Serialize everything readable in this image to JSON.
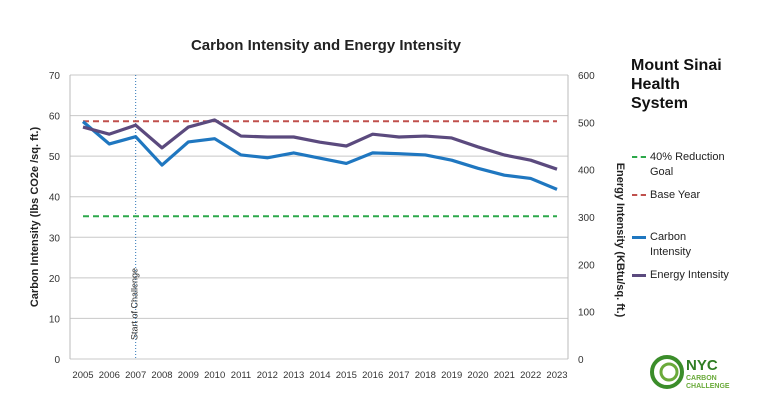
{
  "chart_data": {
    "type": "line",
    "title": "Carbon Intensity and Energy Intensity",
    "ylabel": "Carbon Intensity (lbs CO2e /sq. ft.)",
    "y2label": "Energy Intensity (KBtu/sq. ft.)",
    "ylim": [
      0,
      70
    ],
    "y2lim": [
      0,
      600
    ],
    "yticks": [
      "0",
      "10",
      "20",
      "30",
      "40",
      "50",
      "60",
      "70"
    ],
    "y2ticks": [
      "0",
      "100",
      "200",
      "300",
      "400",
      "500",
      "600"
    ],
    "x": [
      "2005",
      "2006",
      "2007",
      "2008",
      "2009",
      "2010",
      "2011",
      "2012",
      "2013",
      "2014",
      "2015",
      "2016",
      "2017",
      "2018",
      "2019",
      "2020",
      "2021",
      "2022",
      "2023"
    ],
    "series": [
      {
        "name": "Carbon Intensity",
        "axis": "left",
        "color": "#1f77c0",
        "values": [
          58.5,
          53,
          54.8,
          47.8,
          53.5,
          54.3,
          50.3,
          49.6,
          50.8,
          49.5,
          48.2,
          50.8,
          50.6,
          50.3,
          49,
          47,
          45.3,
          44.5,
          41.8
        ]
      },
      {
        "name": "Energy Intensity",
        "axis": "right",
        "color": "#5b4a7e",
        "values": [
          490,
          475,
          494,
          446,
          490,
          505,
          471,
          469,
          469,
          458,
          450,
          475,
          469,
          471,
          467,
          448,
          431,
          420,
          401
        ]
      }
    ],
    "reference_lines": [
      {
        "name": "40% Reduction Goal",
        "axis": "left",
        "value": 35.2,
        "color": "#2ca84a",
        "style": "dashed"
      },
      {
        "name": "Base Year",
        "axis": "left",
        "value": 58.6,
        "color": "#c0504d",
        "style": "dashed"
      }
    ],
    "annotation": {
      "text": "Start of Challenge",
      "x": "2007",
      "color": "#2e75b6"
    },
    "grid": true,
    "legend_position": "right"
  },
  "side_title": "Mount Sinai Health System",
  "logo": {
    "text": "NYC CARBON CHALLENGE",
    "color": "#3b8d2a"
  }
}
